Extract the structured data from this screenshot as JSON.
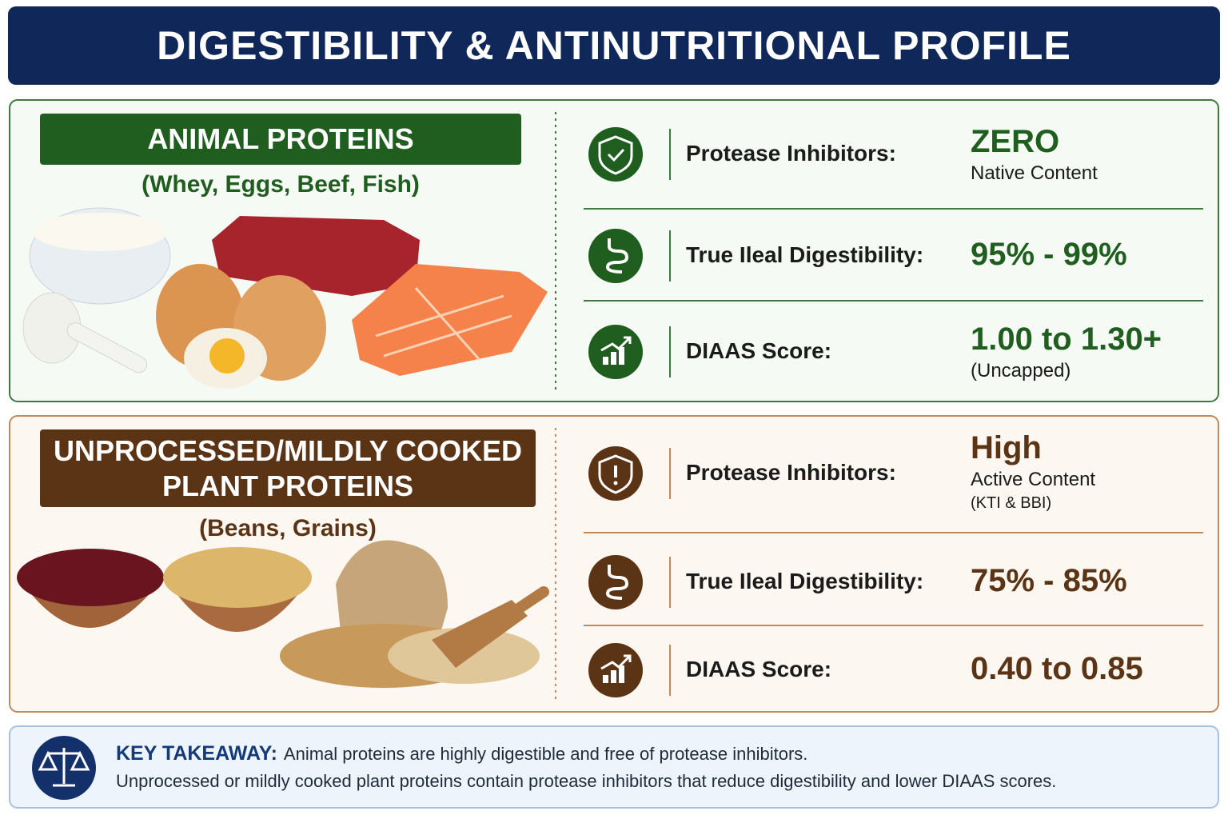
{
  "header": {
    "title": "DIGESTIBILITY & ANTINUTRITIONAL PROFILE"
  },
  "sections": [
    {
      "heading": [
        "ANIMAL PROTEINS"
      ],
      "subheading": "(Whey, Eggs, Beef, Fish)",
      "rows": [
        {
          "label": "Protease Inhibitors:",
          "value": "ZERO",
          "notes": [
            "Native Content"
          ]
        },
        {
          "label": "True Ileal Digestibility:",
          "value": "95% - 99%"
        },
        {
          "label": "DIAAS Score:",
          "value": "1.00 to 1.30+",
          "notes": [
            "(Uncapped)"
          ]
        }
      ]
    },
    {
      "heading": [
        "UNPROCESSED/MILDLY COOKED",
        "PLANT PROTEINS"
      ],
      "subheading": "(Beans, Grains)",
      "rows": [
        {
          "label": "Protease Inhibitors:",
          "value": "High",
          "notes": [
            "Active Content",
            "(KTI & BBI)"
          ]
        },
        {
          "label": "True Ileal Digestibility:",
          "value": "75% - 85%"
        },
        {
          "label": "DIAAS Score:",
          "value": "0.40 to 0.85"
        }
      ]
    }
  ],
  "takeaway": {
    "lead": "KEY TAKEAWAY:",
    "line1": "Animal proteins are highly digestible and free of protease inhibitors.",
    "line2": "Unprocessed or mildly cooked plant proteins contain protease inhibitors that reduce digestibility and lower DIAAS scores."
  }
}
